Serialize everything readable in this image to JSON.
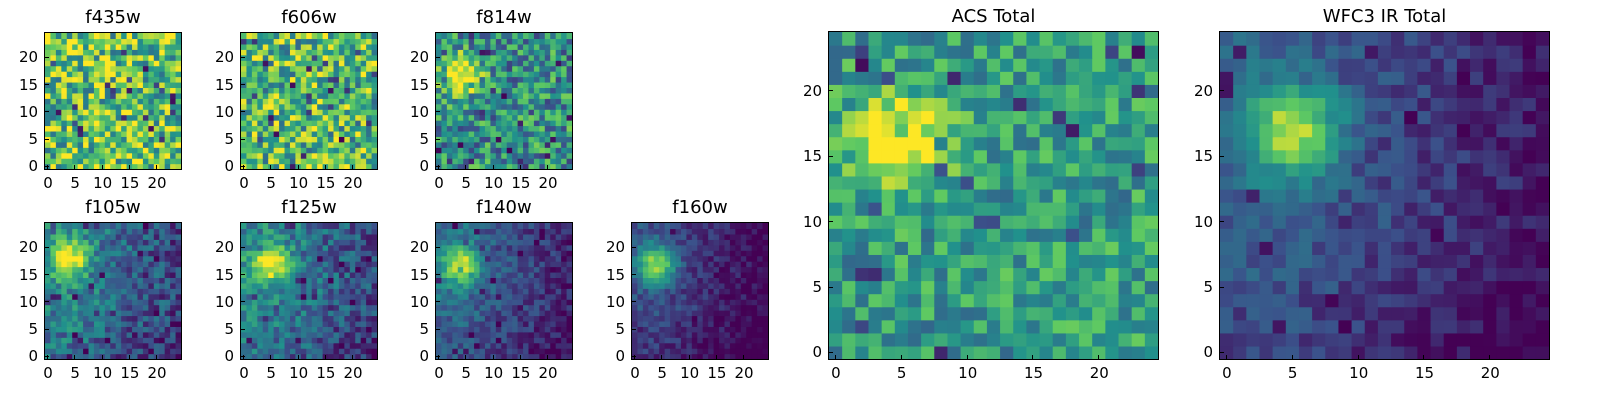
{
  "figure": {
    "colormap": [
      "#440154",
      "#3b528b",
      "#21918c",
      "#5ec962",
      "#fde725"
    ]
  },
  "chart_data": [
    {
      "type": "heatmap",
      "title": "f435w",
      "xticks": [
        0,
        5,
        10,
        15,
        20
      ],
      "yticks": [
        0,
        5,
        10,
        15,
        20
      ],
      "xlim": [
        -0.5,
        24.5
      ],
      "ylim": [
        -0.5,
        24.5
      ],
      "grid": false,
      "data_description": "25x25 pixel image; mostly noisy green-yellow, few dark pixels",
      "values": "see script (seeded field)",
      "pattern": {
        "bright_center": null,
        "noise": 0.35,
        "base": 0.72
      }
    },
    {
      "type": "heatmap",
      "title": "f606w",
      "xticks": [
        0,
        5,
        10,
        15,
        20
      ],
      "yticks": [
        0,
        5,
        10,
        15,
        20
      ],
      "xlim": [
        -0.5,
        24.5
      ],
      "ylim": [
        -0.5,
        24.5
      ],
      "grid": false,
      "pattern": {
        "bright_center": null,
        "noise": 0.35,
        "base": 0.68
      }
    },
    {
      "type": "heatmap",
      "title": "f814w",
      "xticks": [
        0,
        5,
        10,
        15,
        20
      ],
      "yticks": [
        0,
        5,
        10,
        15,
        20
      ],
      "xlim": [
        -0.5,
        24.5
      ],
      "ylim": [
        -0.5,
        24.5
      ],
      "grid": false,
      "pattern": {
        "bright_center": [
          4,
          17
        ],
        "noise": 0.3,
        "base": 0.5
      }
    },
    {
      "type": "heatmap",
      "title": "f105w",
      "xticks": [
        0,
        5,
        10,
        15,
        20
      ],
      "yticks": [
        0,
        5,
        10,
        15,
        20
      ],
      "xlim": [
        -0.5,
        24.5
      ],
      "ylim": [
        -0.5,
        24.5
      ],
      "grid": false,
      "pattern": {
        "bright_center": [
          4,
          18
        ],
        "noise": 0.18,
        "base": 0.45
      }
    },
    {
      "type": "heatmap",
      "title": "f125w",
      "xticks": [
        0,
        5,
        10,
        15,
        20
      ],
      "yticks": [
        0,
        5,
        10,
        15,
        20
      ],
      "xlim": [
        -0.5,
        24.5
      ],
      "ylim": [
        -0.5,
        24.5
      ],
      "grid": false,
      "pattern": {
        "bright_center": [
          5,
          17
        ],
        "noise": 0.18,
        "base": 0.45
      }
    },
    {
      "type": "heatmap",
      "title": "f140w",
      "xticks": [
        0,
        5,
        10,
        15,
        20
      ],
      "yticks": [
        0,
        5,
        10,
        15,
        20
      ],
      "xlim": [
        -0.5,
        24.5
      ],
      "ylim": [
        -0.5,
        24.5
      ],
      "grid": false,
      "pattern": {
        "bright_center": [
          4,
          17
        ],
        "noise": 0.12,
        "base": 0.35
      }
    },
    {
      "type": "heatmap",
      "title": "f160w",
      "xticks": [
        0,
        5,
        10,
        15,
        20
      ],
      "yticks": [
        0,
        5,
        10,
        15,
        20
      ],
      "xlim": [
        -0.5,
        24.5
      ],
      "ylim": [
        -0.5,
        24.5
      ],
      "grid": false,
      "pattern": {
        "bright_center": [
          4,
          17
        ],
        "noise": 0.1,
        "base": 0.25
      }
    },
    {
      "type": "heatmap",
      "title": "ACS Total",
      "xticks": [
        0,
        5,
        10,
        15,
        20
      ],
      "yticks": [
        0,
        5,
        10,
        15,
        20
      ],
      "xlim": [
        -0.5,
        24.5
      ],
      "ylim": [
        -0.5,
        24.5
      ],
      "grid": false,
      "pattern": {
        "bright_center": [
          5,
          16
        ],
        "noise": 0.22,
        "base": 0.55
      }
    },
    {
      "type": "heatmap",
      "title": "WFC3 IR Total",
      "xticks": [
        0,
        5,
        10,
        15,
        20
      ],
      "yticks": [
        0,
        5,
        10,
        15,
        20
      ],
      "xlim": [
        -0.5,
        24.5
      ],
      "ylim": [
        -0.5,
        24.5
      ],
      "grid": false,
      "pattern": {
        "bright_center": [
          5,
          17
        ],
        "noise": 0.1,
        "base": 0.3
      }
    }
  ]
}
